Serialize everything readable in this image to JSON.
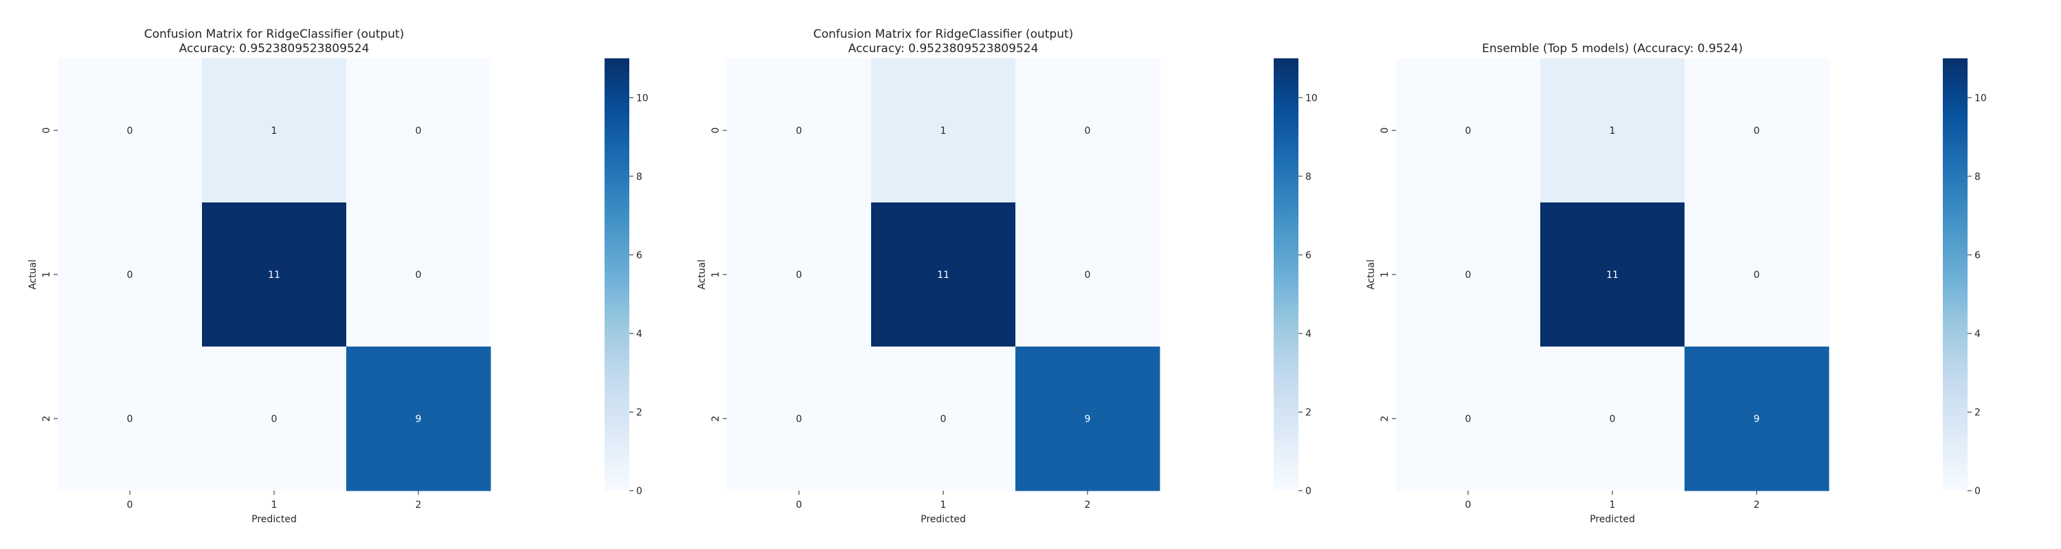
{
  "colors": {
    "cell_text_light": "#ffffff",
    "cell_text_dark": "#262626",
    "colormap": "Blues"
  },
  "chart_data": [
    {
      "type": "heatmap",
      "title": "Confusion Matrix for RidgeClassifier (output)\nAccuracy: 0.9523809523809524",
      "title_lines": [
        "Confusion Matrix for RidgeClassifier (output)",
        "Accuracy: 0.9523809523809524"
      ],
      "xlabel": "Predicted",
      "ylabel": "Actual",
      "x_categories": [
        "0",
        "1",
        "2"
      ],
      "y_categories": [
        "0",
        "1",
        "2"
      ],
      "values": [
        [
          0,
          1,
          0
        ],
        [
          0,
          11,
          0
        ],
        [
          0,
          0,
          9
        ]
      ],
      "colorbar": {
        "min": 0,
        "max": 11,
        "ticks": [
          "0",
          "2",
          "4",
          "6",
          "8",
          "10"
        ]
      }
    },
    {
      "type": "heatmap",
      "title": "Confusion Matrix for RidgeClassifier (output)\nAccuracy: 0.9523809523809524",
      "title_lines": [
        "Confusion Matrix for RidgeClassifier (output)",
        "Accuracy: 0.9523809523809524"
      ],
      "xlabel": "Predicted",
      "ylabel": "Actual",
      "x_categories": [
        "0",
        "1",
        "2"
      ],
      "y_categories": [
        "0",
        "1",
        "2"
      ],
      "values": [
        [
          0,
          1,
          0
        ],
        [
          0,
          11,
          0
        ],
        [
          0,
          0,
          9
        ]
      ],
      "colorbar": {
        "min": 0,
        "max": 11,
        "ticks": [
          "0",
          "2",
          "4",
          "6",
          "8",
          "10"
        ]
      }
    },
    {
      "type": "heatmap",
      "title": "Ensemble (Top 5 models) (Accuracy: 0.9524)",
      "title_lines": [
        "Ensemble (Top 5 models) (Accuracy: 0.9524)"
      ],
      "xlabel": "Predicted",
      "ylabel": "Actual",
      "x_categories": [
        "0",
        "1",
        "2"
      ],
      "y_categories": [
        "0",
        "1",
        "2"
      ],
      "values": [
        [
          0,
          1,
          0
        ],
        [
          0,
          11,
          0
        ],
        [
          0,
          0,
          9
        ]
      ],
      "colorbar": {
        "min": 0,
        "max": 11,
        "ticks": [
          "0",
          "2",
          "4",
          "6",
          "8",
          "10"
        ]
      }
    }
  ]
}
